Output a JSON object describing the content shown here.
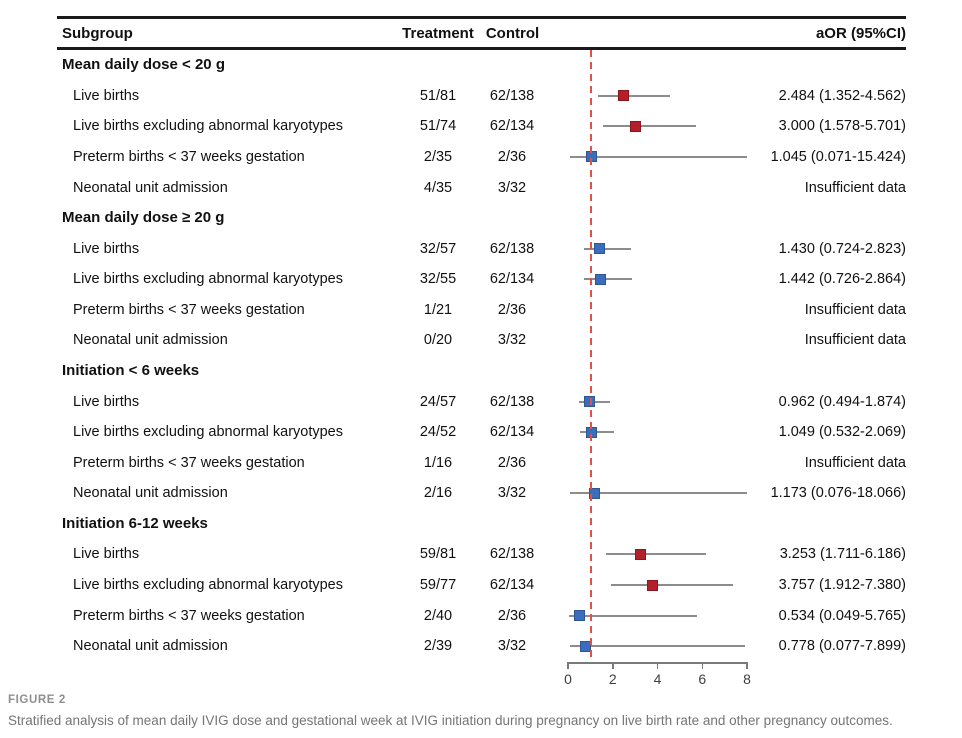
{
  "figure": {
    "caption_label": "FIGURE 2",
    "caption_text": "Stratified analysis of mean daily IVIG dose and gestational week at IVIG initiation during pregnancy on live birth rate and other pregnancy outcomes."
  },
  "chart_data": {
    "type": "scatter",
    "subtype": "forest-plot",
    "columns": [
      "Subgroup",
      "Treatment",
      "Control",
      "aOR (95%CI)"
    ],
    "xlabel": "",
    "xlim": [
      0,
      8
    ],
    "x_ticks": [
      0,
      2,
      4,
      6,
      8
    ],
    "reference_line_x": 1,
    "insufficient_label": "Insufficient data",
    "colors": {
      "significant_marker": "#b4202a",
      "significant_marker_border": "#8d161f",
      "nonsignificant_marker": "#3a6ebc",
      "nonsignificant_marker_border": "#2f5597",
      "ci_line": "#8c8c8c",
      "reference_line": "#d9534f",
      "axis": "#7a7a7a",
      "tick_label": "#404040",
      "rule": "#1a1a1a"
    },
    "groups": [
      {
        "label": "Mean daily dose < 20 g",
        "rows": [
          {
            "label": "Live births",
            "treatment": "51/81",
            "control": "62/138",
            "aor": "2.484 (1.352-4.562)",
            "est": 2.484,
            "lo": 1.352,
            "hi": 4.562,
            "significant": true
          },
          {
            "label": "Live births excluding abnormal karyotypes",
            "treatment": "51/74",
            "control": "62/134",
            "aor": "3.000 (1.578-5.701)",
            "est": 3.0,
            "lo": 1.578,
            "hi": 5.701,
            "significant": true
          },
          {
            "label": "Preterm births < 37 weeks gestation",
            "treatment": "2/35",
            "control": "2/36",
            "aor": "1.045 (0.071-15.424)",
            "est": 1.045,
            "lo": 0.071,
            "hi": 15.424,
            "significant": false
          },
          {
            "label": "Neonatal unit admission",
            "treatment": "4/35",
            "control": "3/32",
            "aor": "Insufficient data",
            "est": null,
            "lo": null,
            "hi": null,
            "significant": false
          }
        ]
      },
      {
        "label": "Mean daily dose ≥ 20 g",
        "rows": [
          {
            "label": "Live births",
            "treatment": "32/57",
            "control": "62/138",
            "aor": "1.430 (0.724-2.823)",
            "est": 1.43,
            "lo": 0.724,
            "hi": 2.823,
            "significant": false
          },
          {
            "label": "Live births excluding abnormal karyotypes",
            "treatment": "32/55",
            "control": "62/134",
            "aor": "1.442 (0.726-2.864)",
            "est": 1.442,
            "lo": 0.726,
            "hi": 2.864,
            "significant": false
          },
          {
            "label": "Preterm births < 37 weeks gestation",
            "treatment": "1/21",
            "control": "2/36",
            "aor": "Insufficient data",
            "est": null,
            "lo": null,
            "hi": null,
            "significant": false
          },
          {
            "label": "Neonatal unit admission",
            "treatment": "0/20",
            "control": "3/32",
            "aor": "Insufficient data",
            "est": null,
            "lo": null,
            "hi": null,
            "significant": false
          }
        ]
      },
      {
        "label": "Initiation < 6 weeks",
        "rows": [
          {
            "label": "Live births",
            "treatment": "24/57",
            "control": "62/138",
            "aor": "0.962 (0.494-1.874)",
            "est": 0.962,
            "lo": 0.494,
            "hi": 1.874,
            "significant": false
          },
          {
            "label": "Live births excluding abnormal karyotypes",
            "treatment": "24/52",
            "control": "62/134",
            "aor": "1.049 (0.532-2.069)",
            "est": 1.049,
            "lo": 0.532,
            "hi": 2.069,
            "significant": false
          },
          {
            "label": "Preterm births < 37 weeks gestation",
            "treatment": "1/16",
            "control": "2/36",
            "aor": "Insufficient data",
            "est": null,
            "lo": null,
            "hi": null,
            "significant": false
          },
          {
            "label": "Neonatal unit admission",
            "treatment": "2/16",
            "control": "3/32",
            "aor": "1.173 (0.076-18.066)",
            "est": 1.173,
            "lo": 0.076,
            "hi": 18.066,
            "significant": false
          }
        ]
      },
      {
        "label": "Initiation 6-12 weeks",
        "rows": [
          {
            "label": "Live births",
            "treatment": "59/81",
            "control": "62/138",
            "aor": "3.253 (1.711-6.186)",
            "est": 3.253,
            "lo": 1.711,
            "hi": 6.186,
            "significant": true
          },
          {
            "label": "Live births excluding abnormal karyotypes",
            "treatment": "59/77",
            "control": "62/134",
            "aor": "3.757 (1.912-7.380)",
            "est": 3.757,
            "lo": 1.912,
            "hi": 7.38,
            "significant": true
          },
          {
            "label": "Preterm births < 37 weeks gestation",
            "treatment": "2/40",
            "control": "2/36",
            "aor": "0.534 (0.049-5.765)",
            "est": 0.534,
            "lo": 0.049,
            "hi": 5.765,
            "significant": false
          },
          {
            "label": "Neonatal unit admission",
            "treatment": "2/39",
            "control": "3/32",
            "aor": "0.778 (0.077-7.899)",
            "est": 0.778,
            "lo": 0.077,
            "hi": 7.899,
            "significant": false
          }
        ]
      }
    ]
  }
}
